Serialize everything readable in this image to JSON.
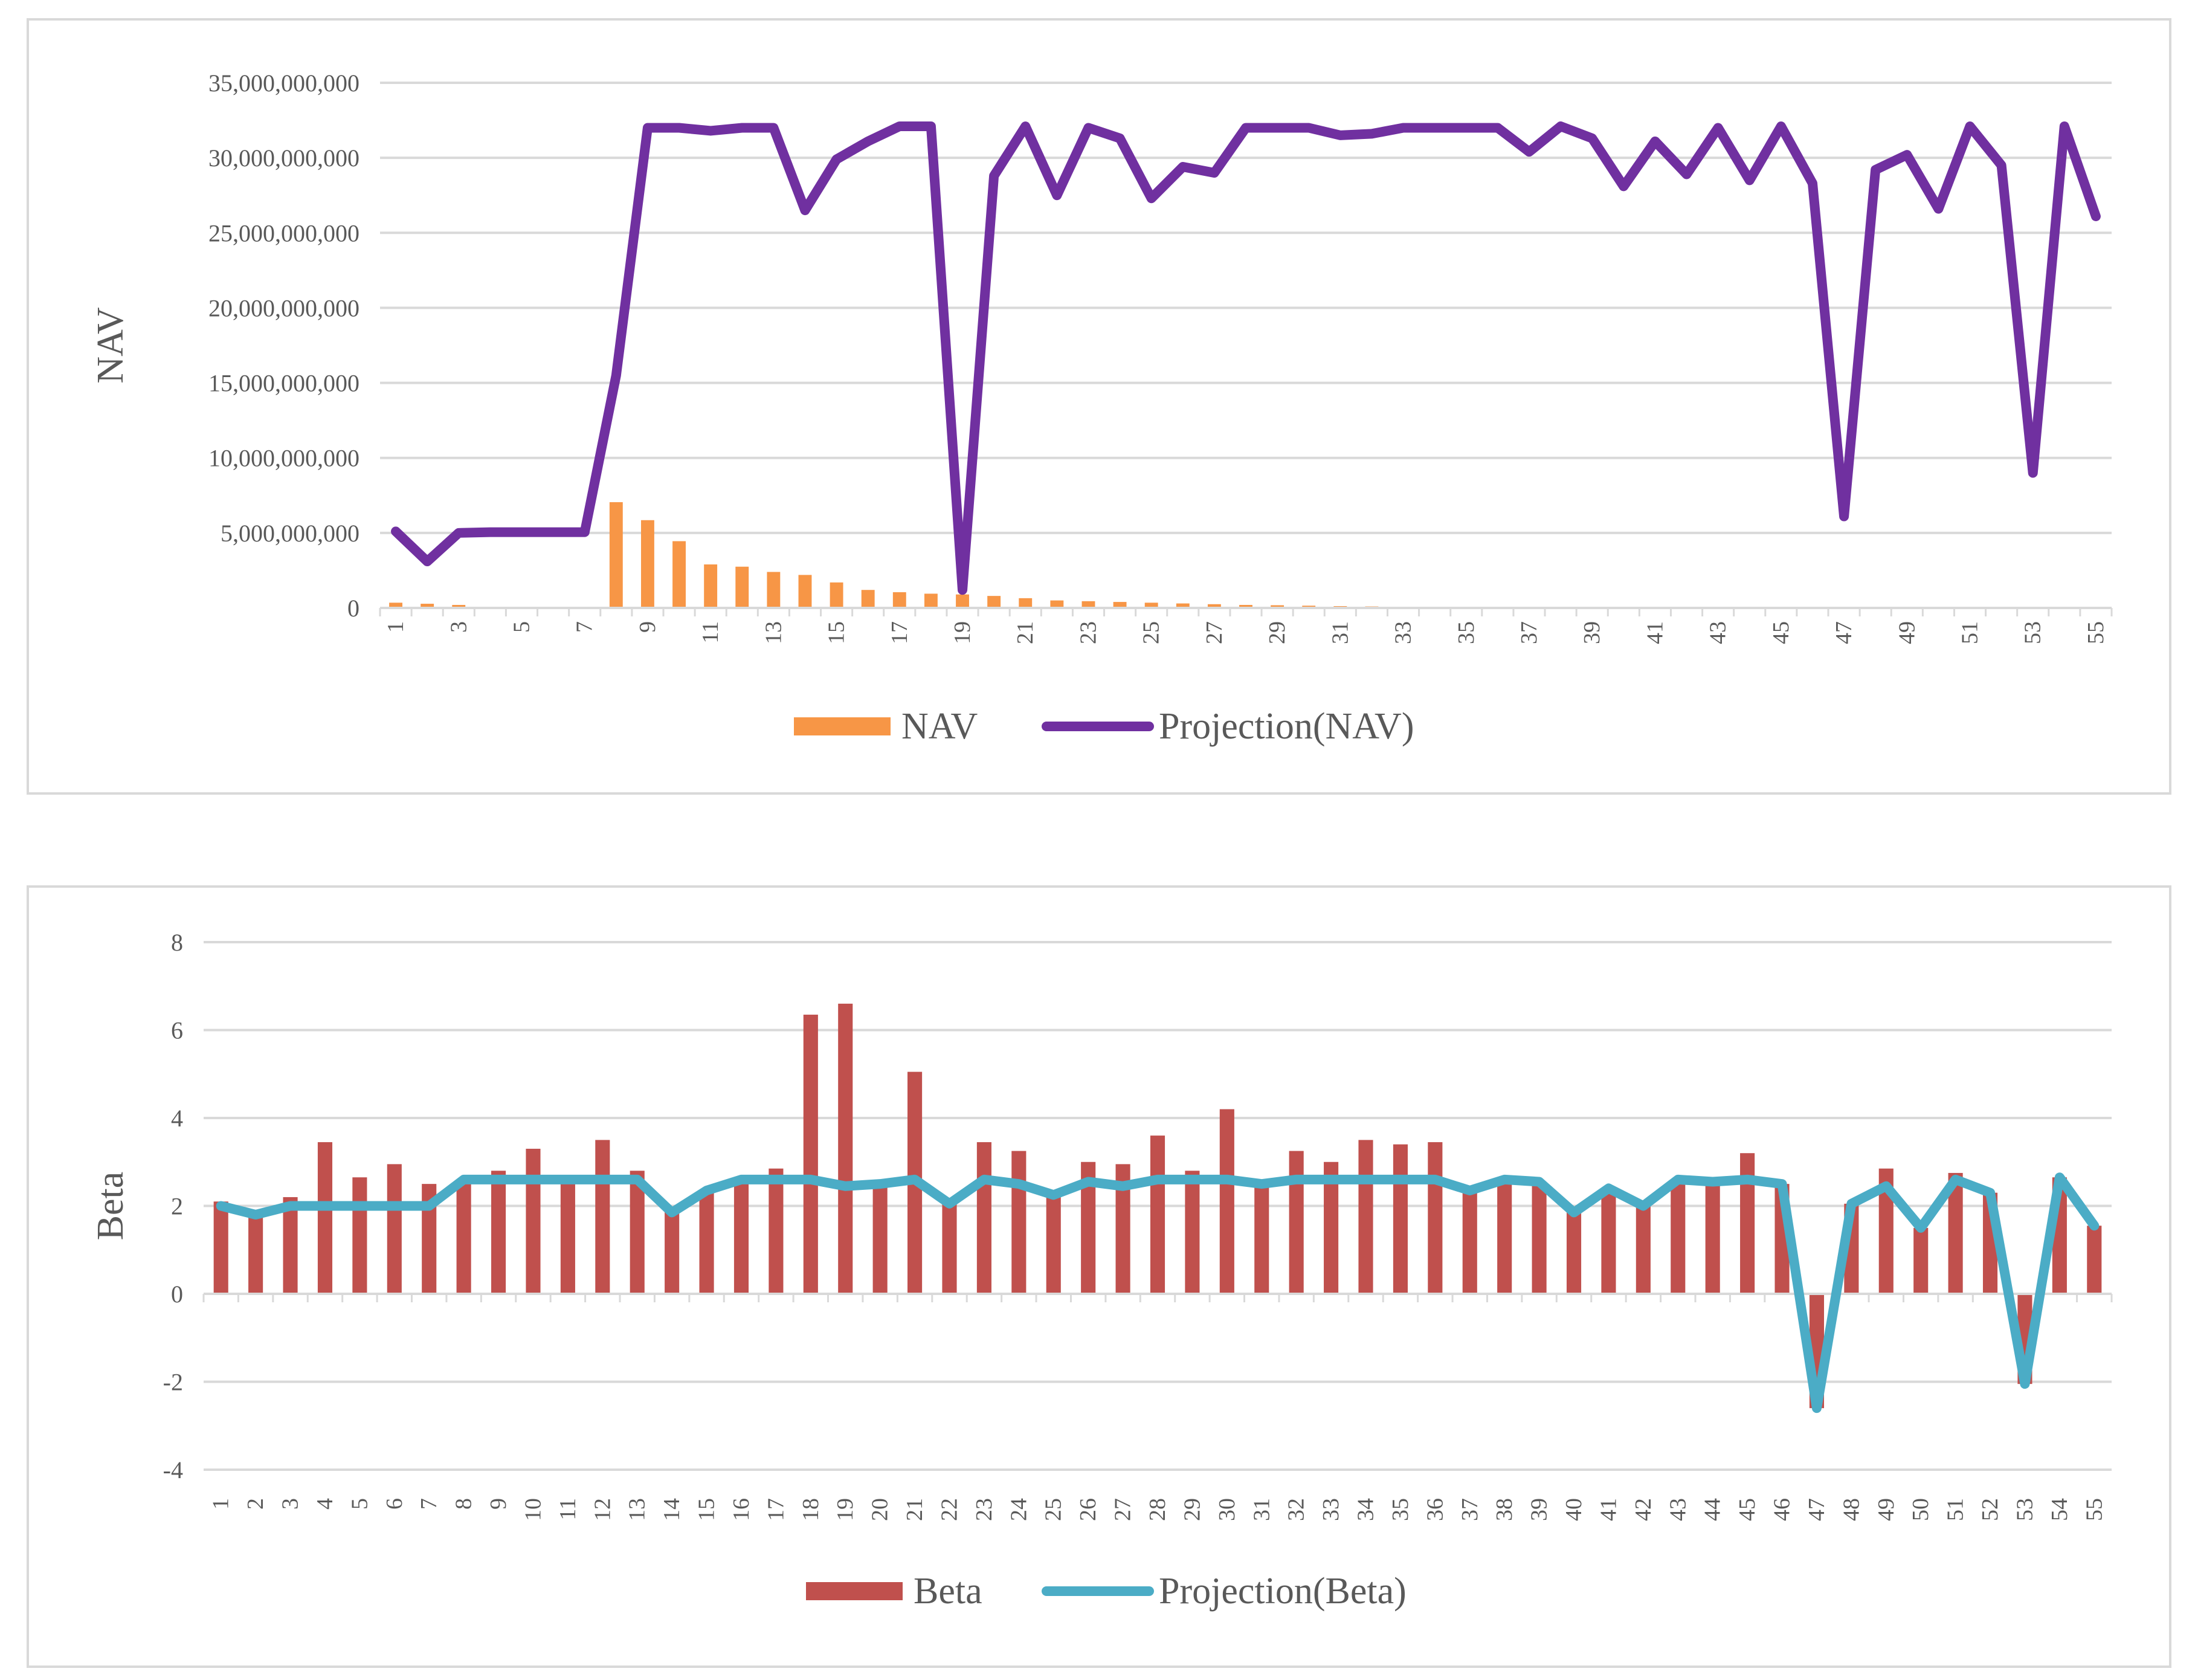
{
  "colors": {
    "nav_bar": "#F79646",
    "nav_projection": "#7030A0",
    "beta_bar": "#C0504D",
    "beta_projection": "#4BACC6",
    "grid": "#d9d9d9",
    "axis_text": "#595959"
  },
  "chart_data": [
    {
      "type": "bar",
      "ylabel": "NAV",
      "ylim": [
        0,
        35000000000
      ],
      "yticks": [
        0,
        5000000000,
        10000000000,
        15000000000,
        20000000000,
        25000000000,
        30000000000,
        35000000000
      ],
      "ytick_labels": [
        "0",
        "5,000,000,000",
        "10,000,000,000",
        "15,000,000,000",
        "20,000,000,000",
        "25,000,000,000",
        "30,000,000,000",
        "35,000,000,000"
      ],
      "categories": [
        1,
        2,
        3,
        4,
        5,
        6,
        7,
        8,
        9,
        10,
        11,
        12,
        13,
        14,
        15,
        16,
        17,
        18,
        19,
        20,
        21,
        22,
        23,
        24,
        25,
        26,
        27,
        28,
        29,
        30,
        31,
        32,
        33,
        34,
        35,
        36,
        37,
        38,
        39,
        40,
        41,
        42,
        43,
        44,
        45,
        46,
        47,
        48,
        49,
        50,
        51,
        52,
        53,
        54,
        55
      ],
      "xtick_labels": [
        "1",
        "3",
        "5",
        "7",
        "9",
        "11",
        "13",
        "15",
        "17",
        "19",
        "21",
        "23",
        "25",
        "27",
        "29",
        "31",
        "33",
        "35",
        "37",
        "39",
        "41",
        "43",
        "45",
        "47",
        "49",
        "51",
        "53",
        "55"
      ],
      "grid": true,
      "legend": "bottom",
      "series": [
        {
          "name": "NAV",
          "kind": "bar",
          "values": [
            350000000,
            280000000,
            200000000,
            0,
            0,
            0,
            0,
            7050000000,
            5850000000,
            4450000000,
            2900000000,
            2750000000,
            2400000000,
            2200000000,
            1700000000,
            1200000000,
            1050000000,
            950000000,
            900000000,
            800000000,
            650000000,
            500000000,
            450000000,
            400000000,
            350000000,
            300000000,
            250000000,
            200000000,
            180000000,
            150000000,
            120000000,
            100000000,
            80000000,
            60000000,
            50000000,
            40000000,
            0,
            0,
            0,
            0,
            0,
            0,
            0,
            0,
            0,
            0,
            0,
            0,
            0,
            0,
            0,
            0,
            0,
            0,
            0
          ]
        },
        {
          "name": "Projection(NAV)",
          "kind": "line",
          "values": [
            5100000000,
            3100000000,
            5000000000,
            5050000000,
            5050000000,
            5050000000,
            5050000000,
            15500000000,
            32000000000,
            32000000000,
            31800000000,
            32000000000,
            32000000000,
            26500000000,
            29900000000,
            31100000000,
            32100000000,
            32100000000,
            1200000000,
            28800000000,
            32100000000,
            27500000000,
            32000000000,
            31300000000,
            27300000000,
            29400000000,
            29000000000,
            32000000000,
            32000000000,
            32000000000,
            31500000000,
            31600000000,
            32000000000,
            32000000000,
            32000000000,
            32000000000,
            30400000000,
            32100000000,
            31300000000,
            28100000000,
            31100000000,
            28900000000,
            32000000000,
            28500000000,
            32100000000,
            28300000000,
            6100000000,
            29200000000,
            30200000000,
            26600000000,
            32100000000,
            29500000000,
            9000000000,
            32100000000,
            26100000000
          ]
        }
      ]
    },
    {
      "type": "bar",
      "ylabel": "Beta",
      "ylim": [
        -4,
        8
      ],
      "yticks": [
        -4,
        -2,
        0,
        2,
        4,
        6,
        8
      ],
      "ytick_labels": [
        "-4",
        "-2",
        "0",
        "2",
        "4",
        "6",
        "8"
      ],
      "categories": [
        1,
        2,
        3,
        4,
        5,
        6,
        7,
        8,
        9,
        10,
        11,
        12,
        13,
        14,
        15,
        16,
        17,
        18,
        19,
        20,
        21,
        22,
        23,
        24,
        25,
        26,
        27,
        28,
        29,
        30,
        31,
        32,
        33,
        34,
        35,
        36,
        37,
        38,
        39,
        40,
        41,
        42,
        43,
        44,
        45,
        46,
        47,
        48,
        49,
        50,
        51,
        52,
        53,
        54,
        55
      ],
      "xtick_labels": [
        "1",
        "2",
        "3",
        "4",
        "5",
        "6",
        "7",
        "8",
        "9",
        "10",
        "11",
        "12",
        "13",
        "14",
        "15",
        "16",
        "17",
        "18",
        "19",
        "20",
        "21",
        "22",
        "23",
        "24",
        "25",
        "26",
        "27",
        "28",
        "29",
        "30",
        "31",
        "32",
        "33",
        "34",
        "35",
        "36",
        "37",
        "38",
        "39",
        "40",
        "41",
        "42",
        "43",
        "44",
        "45",
        "46",
        "47",
        "48",
        "49",
        "50",
        "51",
        "52",
        "53",
        "54",
        "55"
      ],
      "grid": true,
      "legend": "bottom",
      "series": [
        {
          "name": "Beta",
          "kind": "bar",
          "values": [
            2.1,
            1.85,
            2.2,
            3.45,
            2.65,
            2.95,
            2.5,
            2.6,
            2.8,
            3.3,
            2.6,
            3.5,
            2.8,
            1.9,
            2.3,
            2.55,
            2.85,
            6.35,
            6.6,
            2.45,
            5.05,
            2.05,
            3.45,
            3.25,
            2.25,
            3.0,
            2.95,
            3.6,
            2.8,
            4.2,
            2.5,
            3.25,
            3.0,
            3.5,
            3.4,
            3.45,
            2.3,
            2.6,
            2.55,
            1.85,
            2.4,
            2.0,
            2.6,
            2.55,
            3.2,
            2.5,
            -2.6,
            2.05,
            2.85,
            1.5,
            2.75,
            2.3,
            -2.05,
            2.65,
            1.55
          ]
        },
        {
          "name": "Projection(Beta)",
          "kind": "line",
          "values": [
            2.0,
            1.8,
            2.0,
            2.0,
            2.0,
            2.0,
            2.0,
            2.6,
            2.6,
            2.6,
            2.6,
            2.6,
            2.6,
            1.85,
            2.35,
            2.6,
            2.6,
            2.6,
            2.45,
            2.5,
            2.6,
            2.05,
            2.6,
            2.5,
            2.25,
            2.55,
            2.45,
            2.6,
            2.6,
            2.6,
            2.5,
            2.6,
            2.6,
            2.6,
            2.6,
            2.6,
            2.35,
            2.6,
            2.55,
            1.85,
            2.4,
            2.0,
            2.6,
            2.55,
            2.6,
            2.5,
            -2.6,
            2.05,
            2.45,
            1.5,
            2.6,
            2.3,
            -2.05,
            2.65,
            1.55
          ]
        }
      ]
    }
  ]
}
